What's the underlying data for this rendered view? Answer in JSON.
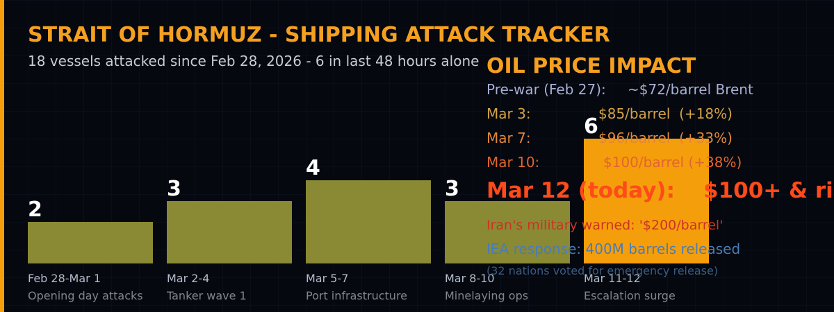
{
  "chart_data": {
    "type": "bar",
    "title": "STRAIT OF HORMUZ - SHIPPING ATTACK TRACKER",
    "subtitle": "18 vessels attacked since Feb 28, 2026 - 6 in last 48 hours alone",
    "categories": [
      "Feb 28-Mar 1",
      "Mar 2-4",
      "Mar 5-7",
      "Mar 8-10",
      "Mar 11-12"
    ],
    "descriptions": [
      "Opening day attacks",
      "Tanker wave 1",
      "Port infrastructure",
      "Minelaying ops",
      "Escalation surge"
    ],
    "values": [
      2,
      3,
      4,
      3,
      6
    ],
    "colors": [
      "#8a8934",
      "#8a8934",
      "#8a8934",
      "#8a8934",
      "#f59e0b"
    ],
    "ylim": [
      0,
      6
    ]
  },
  "oil_panel": {
    "title": "OIL PRICE IMPACT",
    "prewar": {
      "label": "Pre-war (Feb 27):",
      "value": "~$72/barrel Brent"
    },
    "rows": [
      {
        "label": "Mar 3:",
        "value": "$85/barrel  (+18%)",
        "color": "#d4a248"
      },
      {
        "label": "Mar 7:",
        "value": "$96/barrel  (+33%)",
        "color": "#e0883a"
      },
      {
        "label": "Mar 10:",
        "value": "$100/barrel (+38%)",
        "color": "#e2642e"
      }
    ],
    "today": {
      "label": "Mar 12 (today):",
      "value": "$100+ & ri"
    },
    "warning": "Iran's military warned: '$200/barrel'",
    "iea": "IEA response: 400M barrels released",
    "note": "(32 nations voted for emergency release)"
  }
}
